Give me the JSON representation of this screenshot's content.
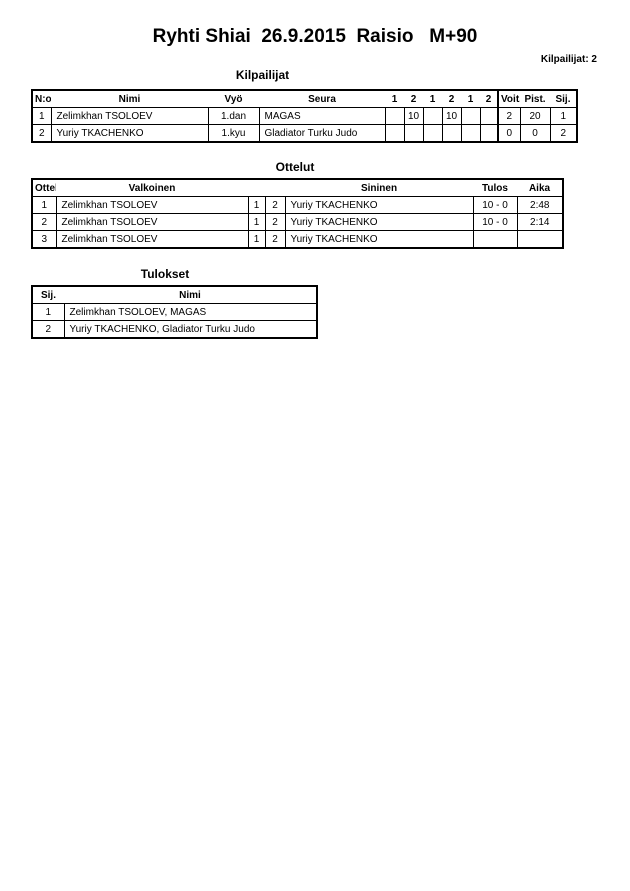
{
  "title": "Ryhti Shiai  26.9.2015  Raisio   M+90",
  "competitor_count": "Kilpailijat: 2",
  "competitors": {
    "heading": "Kilpailijat",
    "headers": [
      "N:o",
      "Nimi",
      "Vyö",
      "Seura",
      "1",
      "2",
      "1",
      "2",
      "1",
      "2",
      "Voit.",
      "Pist.",
      "Sij."
    ],
    "rows": [
      [
        "1",
        "Zelimkhan TSOLOEV",
        "1.dan",
        "MAGAS",
        "",
        "10",
        "",
        "10",
        "",
        "",
        "2",
        "20",
        "1"
      ],
      [
        "2",
        "Yuriy TKACHENKO",
        "1.kyu",
        "Gladiator Turku Judo",
        "",
        "",
        "",
        "",
        "",
        "",
        "0",
        "0",
        "2"
      ]
    ]
  },
  "matches": {
    "heading": "Ottelut",
    "headers": [
      "Ottelu",
      "Valkoinen",
      "",
      "",
      "Sininen",
      "Tulos",
      "Aika"
    ],
    "rows": [
      [
        "1",
        "Zelimkhan TSOLOEV",
        "1",
        "2",
        "Yuriy TKACHENKO",
        "10 - 0",
        "2:48"
      ],
      [
        "2",
        "Zelimkhan TSOLOEV",
        "1",
        "2",
        "Yuriy TKACHENKO",
        "10 - 0",
        "2:14"
      ],
      [
        "3",
        "Zelimkhan TSOLOEV",
        "1",
        "2",
        "Yuriy TKACHENKO",
        "",
        ""
      ]
    ]
  },
  "results": {
    "heading": "Tulokset",
    "headers": [
      "Sij.",
      "Nimi"
    ],
    "rows": [
      [
        "1",
        "Zelimkhan TSOLOEV, MAGAS"
      ],
      [
        "2",
        "Yuriy TKACHENKO, Gladiator Turku Judo"
      ]
    ]
  }
}
